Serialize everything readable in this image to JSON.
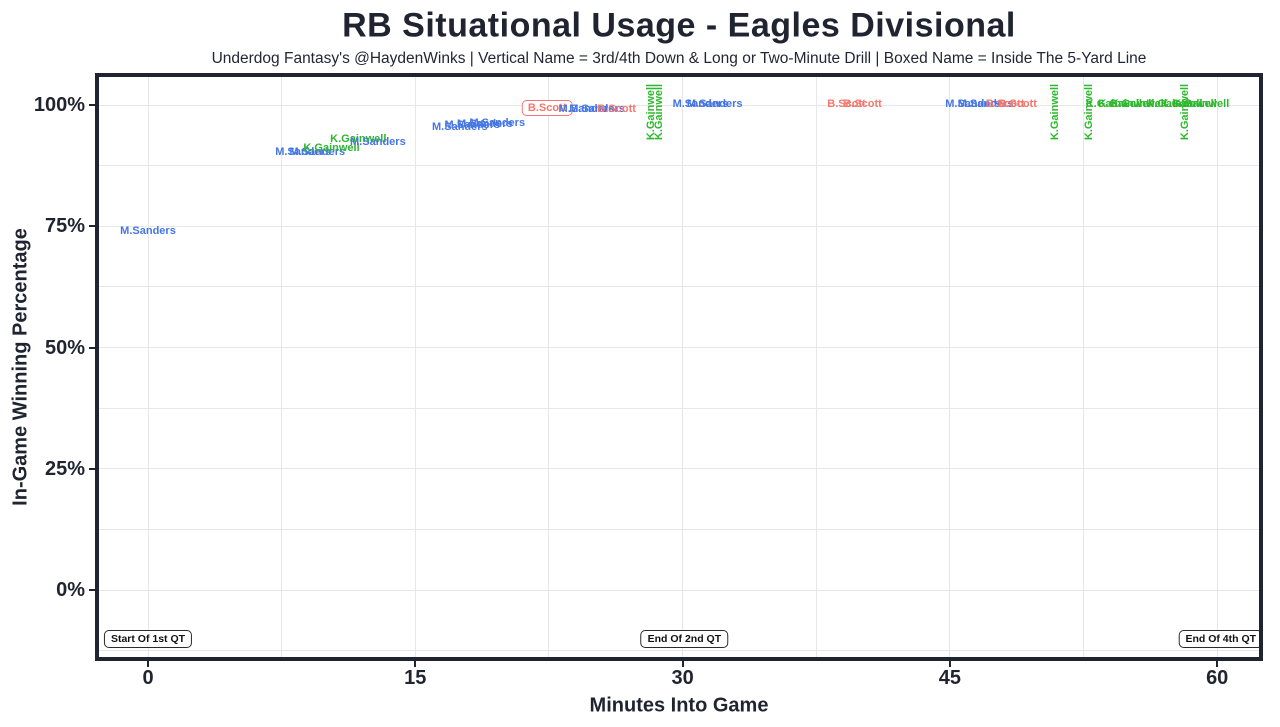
{
  "chart_data": {
    "type": "scatter",
    "title": "RB Situational Usage - Eagles Divisional",
    "subtitle": "Underdog Fantasy's @HaydenWinks | Vertical Name = 3rd/4th Down & Long or Two-Minute Drill | Boxed Name = Inside The 5-Yard Line",
    "xlabel": "Minutes Into Game",
    "ylabel": "In-Game Winning Percentage",
    "xlim": [
      -2.75,
      62.3
    ],
    "ylim": [
      -13.8,
      105.8
    ],
    "grid": true,
    "legend_position": "none",
    "x_ticks": [
      0,
      15,
      30,
      45,
      60
    ],
    "x_tick_labels": [
      "0",
      "15",
      "30",
      "45",
      "60"
    ],
    "x_minor_ticks": [
      7.5,
      22.5,
      37.5,
      52.5
    ],
    "y_ticks": [
      0,
      25,
      50,
      75,
      100
    ],
    "y_tick_labels": [
      "0%",
      "25%",
      "50%",
      "75%",
      "100%"
    ],
    "y_minor_ticks": [
      -12.5,
      12.5,
      37.5,
      62.5,
      87.5
    ],
    "colors": {
      "M.Sanders": "#4576e4",
      "K.Gainwell": "#2eb82e",
      "B.Scott": "#f8766d"
    },
    "axis_color": "#1f2430",
    "gridline_color": "#e7e7e7",
    "points": [
      {
        "name": "M.Sanders",
        "min": 0,
        "wp": 74
      },
      {
        "name": "M.Sanders",
        "min": 8.7,
        "wp": 90.3
      },
      {
        "name": "M.Sanders",
        "min": 9.5,
        "wp": 90.3
      },
      {
        "name": "K.Gainwell",
        "min": 10.3,
        "wp": 91.2
      },
      {
        "name": "K.Gainwell",
        "min": 11.8,
        "wp": 93
      },
      {
        "name": "M.Sanders",
        "min": 12.9,
        "wp": 92.4
      },
      {
        "name": "M.Sanders",
        "min": 17.5,
        "wp": 95.5
      },
      {
        "name": "M.Sanders",
        "min": 18.2,
        "wp": 95.9
      },
      {
        "name": "M.Sanders",
        "min": 18.9,
        "wp": 96.1
      },
      {
        "name": "M.Sanders",
        "min": 19.6,
        "wp": 96.3
      },
      {
        "name": "B.Scott",
        "min": 22.4,
        "wp": 99.4,
        "boxed": true
      },
      {
        "name": "M.Sanders",
        "min": 24.6,
        "wp": 99.2
      },
      {
        "name": "M.Sanders",
        "min": 25.2,
        "wp": 99.2
      },
      {
        "name": "B.Scott",
        "min": 26.3,
        "wp": 99.2
      },
      {
        "name": "K.Gainwell",
        "min": 28.2,
        "wp": 98.6,
        "vertical": true
      },
      {
        "name": "K.Gainwell",
        "min": 28.7,
        "wp": 98.6,
        "vertical": true
      },
      {
        "name": "M.Sanders",
        "min": 31,
        "wp": 100.2
      },
      {
        "name": "M.Sanders",
        "min": 31.8,
        "wp": 100.2
      },
      {
        "name": "B.Scott",
        "min": 39.2,
        "wp": 100.2
      },
      {
        "name": "B.Scott",
        "min": 40.1,
        "wp": 100.2
      },
      {
        "name": "M.Sanders",
        "min": 46.3,
        "wp": 100.2
      },
      {
        "name": "M.Sanders",
        "min": 47,
        "wp": 100.2
      },
      {
        "name": "B.Scott",
        "min": 48.1,
        "wp": 100.2
      },
      {
        "name": "B.Scott",
        "min": 48.8,
        "wp": 100.2
      },
      {
        "name": "K.Gainwell",
        "min": 50.9,
        "wp": 98.6,
        "vertical": true
      },
      {
        "name": "K.Gainwell",
        "min": 52.8,
        "wp": 98.6,
        "vertical": true
      },
      {
        "name": "K.Gainwell",
        "min": 54.2,
        "wp": 100.2
      },
      {
        "name": "K.Gainwell",
        "min": 54.9,
        "wp": 100.2
      },
      {
        "name": "K.Gainwell",
        "min": 55.6,
        "wp": 100.2
      },
      {
        "name": "K.Gainwell",
        "min": 57.6,
        "wp": 100.2
      },
      {
        "name": "K.Gainwell",
        "min": 58.2,
        "wp": 98.6,
        "vertical": true
      },
      {
        "name": "K.Gainwell",
        "min": 58.4,
        "wp": 100.2
      },
      {
        "name": "K.Gainwell",
        "min": 59.1,
        "wp": 100.2
      }
    ],
    "annotations": [
      {
        "label": "Start Of 1st QT",
        "min": 0,
        "wp": -10
      },
      {
        "label": "End Of 2nd QT",
        "min": 30.1,
        "wp": -10
      },
      {
        "label": "End Of 4th QT",
        "min": 60.2,
        "wp": -10
      }
    ]
  }
}
